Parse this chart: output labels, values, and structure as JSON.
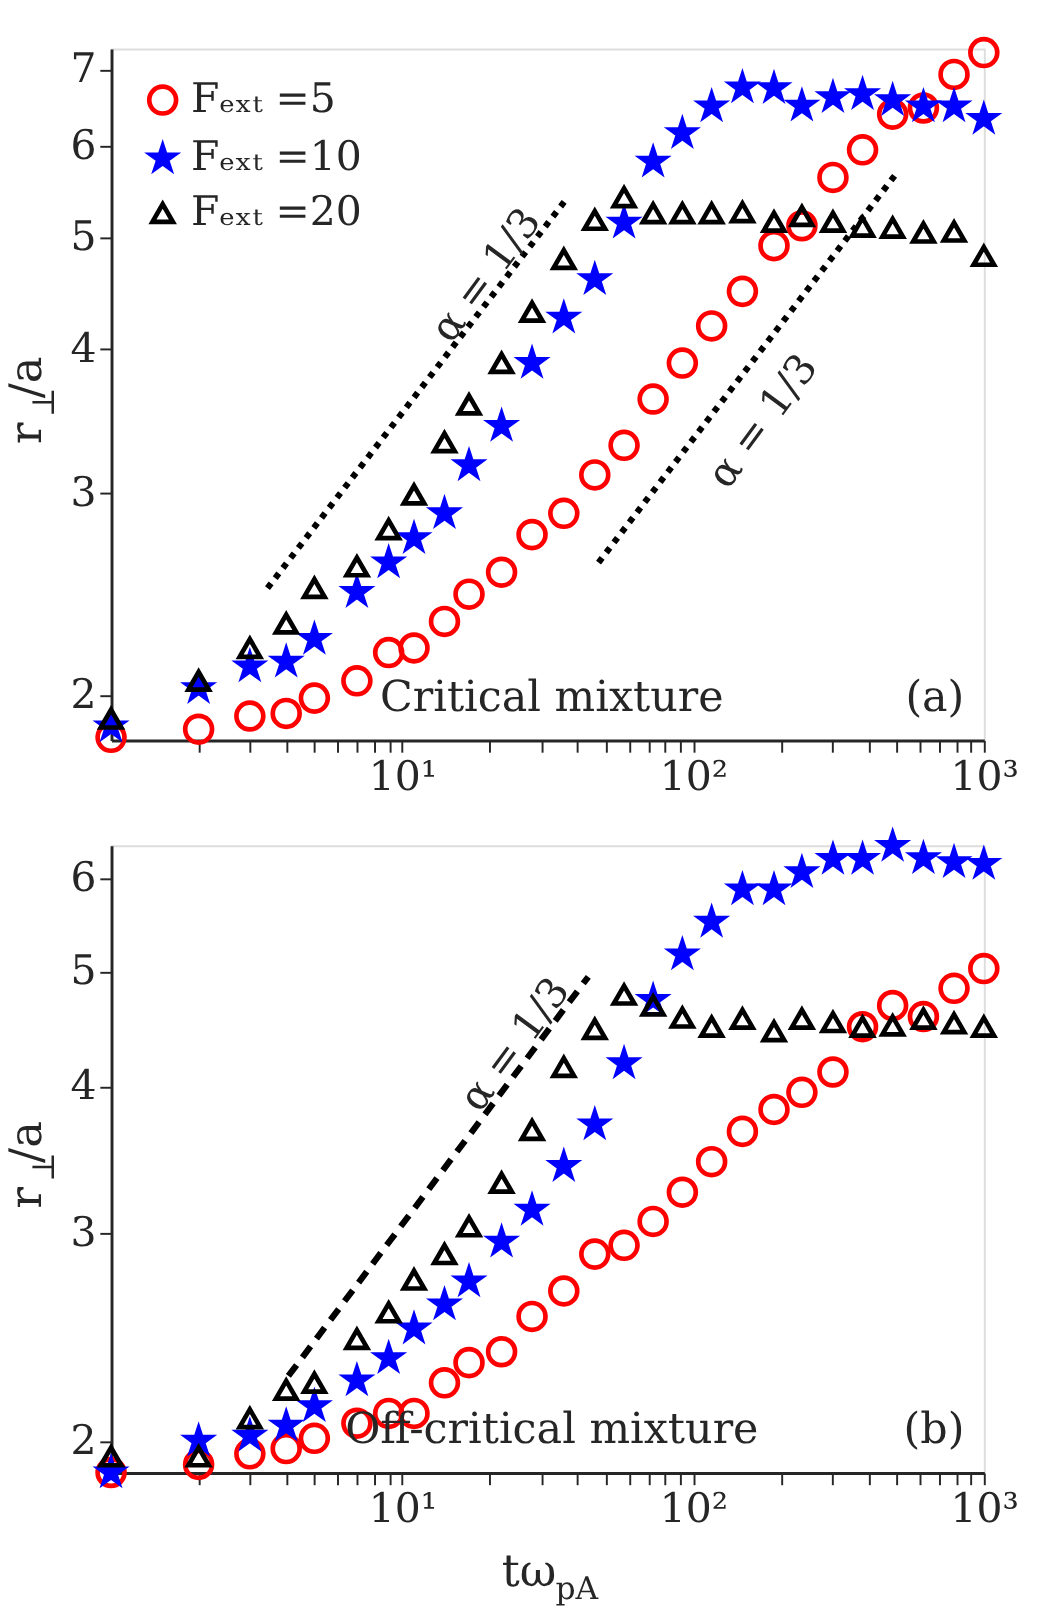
{
  "chart_data": [
    {
      "type": "scatter",
      "ylabel": "r$_{⊥}$/a",
      "legend": "top left",
      "x": [
        1,
        2,
        3,
        4,
        5,
        7,
        9,
        11,
        14,
        17,
        22,
        28,
        36,
        46,
        58,
        73,
        92,
        116,
        148,
        190,
        237,
        303,
        383,
        486,
        620,
        790,
        1000
      ],
      "xlim": [
        1,
        1000
      ],
      "ylim": [
        1.83,
        7.3
      ],
      "log": "xy",
      "xticks": [
        {
          "value": 2,
          "label": null
        },
        {
          "value": 3,
          "label": null
        },
        {
          "value": 4,
          "label": null
        },
        {
          "value": 5,
          "label": null
        },
        {
          "value": 6,
          "label": null
        },
        {
          "value": 7,
          "label": null
        },
        {
          "value": 8,
          "label": null
        },
        {
          "value": 9,
          "label": null
        },
        {
          "value": 10,
          "label": "10¹"
        },
        {
          "value": 20,
          "label": null
        },
        {
          "value": 30,
          "label": null
        },
        {
          "value": 40,
          "label": null
        },
        {
          "value": 50,
          "label": null
        },
        {
          "value": 60,
          "label": null
        },
        {
          "value": 70,
          "label": null
        },
        {
          "value": 80,
          "label": null
        },
        {
          "value": 90,
          "label": null
        },
        {
          "value": 100,
          "label": "10²"
        },
        {
          "value": 200,
          "label": null
        },
        {
          "value": 300,
          "label": null
        },
        {
          "value": 400,
          "label": null
        },
        {
          "value": 500,
          "label": null
        },
        {
          "value": 600,
          "label": null
        },
        {
          "value": 700,
          "label": null
        },
        {
          "value": 800,
          "label": null
        },
        {
          "value": 900,
          "label": null
        },
        {
          "value": 1000,
          "label": "10³"
        }
      ],
      "yticks": [
        2,
        3,
        4,
        5,
        6,
        7
      ],
      "series": [
        {
          "name": "Fₑₓₜ =5",
          "color": "#ff0000",
          "marker": "circle",
          "values": [
            1.84,
            1.87,
            1.92,
            1.93,
            1.99,
            2.06,
            2.18,
            2.2,
            2.32,
            2.45,
            2.56,
            2.76,
            2.88,
            3.11,
            3.3,
            3.62,
            3.89,
            4.19,
            4.49,
            4.92,
            5.12,
            5.64,
            5.96,
            6.4,
            6.48,
            6.93,
            7.24
          ]
        },
        {
          "name": "Fₑₓₜ =10",
          "color": "#0000ff",
          "marker": "star",
          "values": [
            1.88,
            2.03,
            2.12,
            2.14,
            2.24,
            2.46,
            2.61,
            2.74,
            2.88,
            3.17,
            3.43,
            3.89,
            4.26,
            4.6,
            5.15,
            5.82,
            6.16,
            6.5,
            6.75,
            6.74,
            6.51,
            6.62,
            6.66,
            6.58,
            6.5,
            6.5,
            6.34
          ]
        },
        {
          "name": "Fₑₓₜ =20",
          "color": "#000000",
          "marker": "triangle",
          "values": [
            1.91,
            2.06,
            2.2,
            2.31,
            2.48,
            2.59,
            2.79,
            2.99,
            3.32,
            3.58,
            3.89,
            4.31,
            4.79,
            5.18,
            5.42,
            5.25,
            5.25,
            5.25,
            5.26,
            5.16,
            5.22,
            5.16,
            5.11,
            5.1,
            5.05,
            5.06,
            4.82
          ]
        },
        {
          "type": "line",
          "color": "#000000",
          "line_style": "dotted",
          "x": [
            3.45,
            36.1
          ],
          "values": [
            2.48,
            5.37
          ]
        },
        {
          "type": "line",
          "color": "#000000",
          "line_style": "dotted",
          "x": [
            47.4,
            502
          ],
          "values": [
            2.61,
            5.69
          ]
        }
      ],
      "annotations": [
        "α = 1/3",
        "α = 1/3",
        "Critical mixture",
        "(a)"
      ]
    },
    {
      "type": "scatter",
      "xlabel": "tω$_{pA}$",
      "ylabel": "r$_{⊥}$/a",
      "legend": "top left",
      "x": [
        1,
        2,
        3,
        4,
        5,
        7,
        9,
        11,
        14,
        17,
        22,
        28,
        36,
        46,
        58,
        73,
        92,
        116,
        148,
        190,
        237,
        303,
        383,
        486,
        620,
        790,
        1000
      ],
      "xlim": [
        1,
        1000
      ],
      "ylim": [
        1.88,
        6.4
      ],
      "log": "xy",
      "xticks": [
        {
          "value": 2,
          "label": null
        },
        {
          "value": 3,
          "label": null
        },
        {
          "value": 4,
          "label": null
        },
        {
          "value": 5,
          "label": null
        },
        {
          "value": 6,
          "label": null
        },
        {
          "value": 7,
          "label": null
        },
        {
          "value": 8,
          "label": null
        },
        {
          "value": 9,
          "label": null
        },
        {
          "value": 10,
          "label": "10¹"
        },
        {
          "value": 20,
          "label": null
        },
        {
          "value": 30,
          "label": null
        },
        {
          "value": 40,
          "label": null
        },
        {
          "value": 50,
          "label": null
        },
        {
          "value": 60,
          "label": null
        },
        {
          "value": 70,
          "label": null
        },
        {
          "value": 80,
          "label": null
        },
        {
          "value": 90,
          "label": null
        },
        {
          "value": 100,
          "label": "10²"
        },
        {
          "value": 200,
          "label": null
        },
        {
          "value": 300,
          "label": null
        },
        {
          "value": 400,
          "label": null
        },
        {
          "value": 500,
          "label": null
        },
        {
          "value": 600,
          "label": null
        },
        {
          "value": 700,
          "label": null
        },
        {
          "value": 800,
          "label": null
        },
        {
          "value": 900,
          "label": null
        },
        {
          "value": 1000,
          "label": "10³"
        }
      ],
      "yticks": [
        2,
        3,
        4,
        5,
        6
      ],
      "series": [
        {
          "name": "Fₑₓₜ =5",
          "color": "#ff0000",
          "marker": "circle",
          "values": [
            1.88,
            1.91,
            1.95,
            1.97,
            2.01,
            2.07,
            2.11,
            2.11,
            2.24,
            2.33,
            2.38,
            2.55,
            2.68,
            2.88,
            2.93,
            3.07,
            3.25,
            3.45,
            3.66,
            3.82,
            3.95,
            4.11,
            4.49,
            4.68,
            4.58,
            4.84,
            5.03
          ]
        },
        {
          "name": "Fₑₓₜ =10",
          "color": "#0000ff",
          "marker": "star",
          "values": [
            1.88,
            2.0,
            2.02,
            2.06,
            2.14,
            2.25,
            2.35,
            2.49,
            2.61,
            2.73,
            2.95,
            3.14,
            3.42,
            3.71,
            4.18,
            4.73,
            5.17,
            5.51,
            5.87,
            5.87,
            6.07,
            6.23,
            6.23,
            6.39,
            6.24,
            6.19,
            6.17
          ]
        },
        {
          "name": "Fₑₓₜ =20",
          "color": "#000000",
          "marker": "triangle",
          "values": [
            1.94,
            1.94,
            2.09,
            2.21,
            2.24,
            2.44,
            2.57,
            2.74,
            2.88,
            3.04,
            3.31,
            3.67,
            4.15,
            4.47,
            4.78,
            4.68,
            4.57,
            4.49,
            4.56,
            4.45,
            4.56,
            4.53,
            4.49,
            4.5,
            4.56,
            4.52,
            4.49
          ]
        },
        {
          "type": "line",
          "color": "#000000",
          "line_style": "dashed",
          "x": [
            4.07,
            43.7
          ],
          "values": [
            2.27,
            4.95
          ]
        }
      ],
      "annotations": [
        "α = 1/3",
        "Off-critical mixture",
        "(b)"
      ]
    }
  ]
}
